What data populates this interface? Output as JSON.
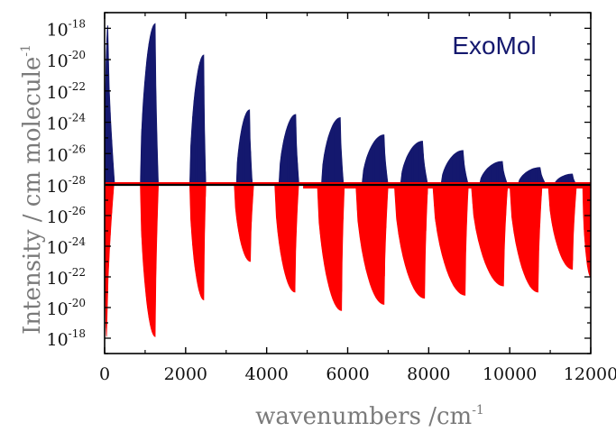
{
  "chart_data": {
    "type": "line",
    "title": "",
    "xlabel": "wavenumbers /cm",
    "xlabel_sup": "-1",
    "ylabel": "Intensity  /  cm molecule",
    "ylabel_sup": "-1",
    "xlim": [
      0,
      12000
    ],
    "x_ticks": [
      {
        "value": 0,
        "label": "0"
      },
      {
        "value": 2000,
        "label": "2000"
      },
      {
        "value": 4000,
        "label": "4000"
      },
      {
        "value": 6000,
        "label": "6000"
      },
      {
        "value": 8000,
        "label": "8000"
      },
      {
        "value": 10000,
        "label": "10000"
      },
      {
        "value": 12000,
        "label": "12000"
      }
    ],
    "y_scale": "log",
    "panels": [
      {
        "name": "top",
        "direction": "up",
        "ylim": [
          1e-28,
          1e-17
        ],
        "color": "#14186e",
        "tick_labels": [
          {
            "exp": -18,
            "label": "10",
            "sup": "-18"
          },
          {
            "exp": -20,
            "label": "10",
            "sup": "-20"
          },
          {
            "exp": -22,
            "label": "10",
            "sup": "-22"
          },
          {
            "exp": -24,
            "label": "10",
            "sup": "-24"
          },
          {
            "exp": -26,
            "label": "10",
            "sup": "-26"
          },
          {
            "exp": -28,
            "label": "10",
            "sup": "-28"
          }
        ],
        "annotation": "ExoMol"
      },
      {
        "name": "bottom",
        "direction": "down",
        "ylim": [
          1e-28,
          1e-17
        ],
        "color": "#ff0000",
        "tick_labels": [
          {
            "exp": -26,
            "label": "10",
            "sup": "-26"
          },
          {
            "exp": -24,
            "label": "10",
            "sup": "-24"
          },
          {
            "exp": -22,
            "label": "10",
            "sup": "-22"
          },
          {
            "exp": -20,
            "label": "10",
            "sup": "-20"
          },
          {
            "exp": -18,
            "label": "10",
            "sup": "-18"
          }
        ]
      }
    ],
    "series": [
      {
        "panel": "top",
        "bands": [
          {
            "start": 0,
            "center": 80,
            "end": 250,
            "peak": 1.5e-18
          },
          {
            "start": 880,
            "center": 1250,
            "end": 1330,
            "peak": 2e-18
          },
          {
            "start": 2100,
            "center": 2450,
            "end": 2500,
            "peak": 2e-20
          },
          {
            "start": 3250,
            "center": 3580,
            "end": 3650,
            "peak": 6.3e-24
          },
          {
            "start": 4300,
            "center": 4720,
            "end": 4800,
            "peak": 3.2e-24
          },
          {
            "start": 5350,
            "center": 5820,
            "end": 5900,
            "peak": 2e-24
          },
          {
            "start": 6350,
            "center": 6900,
            "end": 7000,
            "peak": 1.6e-25
          },
          {
            "start": 7300,
            "center": 7850,
            "end": 7980,
            "peak": 6.3e-26
          },
          {
            "start": 8300,
            "center": 8850,
            "end": 8980,
            "peak": 1.6e-26
          },
          {
            "start": 9250,
            "center": 9820,
            "end": 9950,
            "peak": 3.2e-27
          },
          {
            "start": 10200,
            "center": 10750,
            "end": 10900,
            "peak": 1.3e-27
          },
          {
            "start": 11100,
            "center": 11550,
            "end": 11650,
            "peak": 5e-28
          }
        ]
      },
      {
        "panel": "bottom",
        "bands": [
          {
            "start": 0,
            "center": 50,
            "end": 230,
            "peak": 8e-19
          },
          {
            "start": 880,
            "center": 1250,
            "end": 1330,
            "peak": 8e-19
          },
          {
            "start": 2100,
            "center": 2450,
            "end": 2500,
            "peak": 3.2e-21
          },
          {
            "start": 3200,
            "center": 3600,
            "end": 3680,
            "peak": 1e-23
          },
          {
            "start": 4200,
            "center": 4700,
            "end": 4790,
            "peak": 1e-21
          },
          {
            "start": 5250,
            "center": 5850,
            "end": 5920,
            "peak": 1.6e-20
          },
          {
            "start": 6200,
            "center": 6900,
            "end": 7000,
            "peak": 6.3e-21
          },
          {
            "start": 7150,
            "center": 7900,
            "end": 7980,
            "peak": 2.5e-21
          },
          {
            "start": 8100,
            "center": 8900,
            "end": 8980,
            "peak": 1.6e-21
          },
          {
            "start": 9050,
            "center": 9850,
            "end": 9950,
            "peak": 4e-22
          },
          {
            "start": 10000,
            "center": 10700,
            "end": 10800,
            "peak": 1e-21
          },
          {
            "start": 10950,
            "center": 11550,
            "end": 11650,
            "peak": 3.2e-23
          },
          {
            "start": 11800,
            "center": 12000,
            "end": 12000,
            "peak": 1e-22
          }
        ]
      }
    ]
  }
}
